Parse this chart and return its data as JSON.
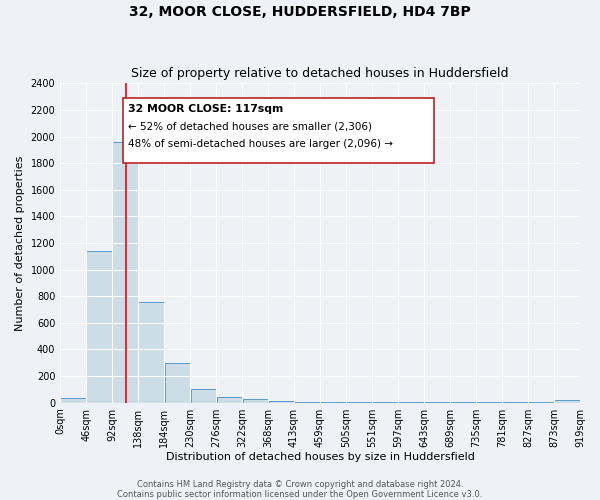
{
  "title": "32, MOOR CLOSE, HUDDERSFIELD, HD4 7BP",
  "subtitle": "Size of property relative to detached houses in Huddersfield",
  "xlabel": "Distribution of detached houses by size in Huddersfield",
  "ylabel": "Number of detached properties",
  "bin_edges": [
    0,
    46,
    92,
    138,
    184,
    230,
    276,
    322,
    368,
    413,
    459,
    505,
    551,
    597,
    643,
    689,
    735,
    781,
    827,
    873,
    919
  ],
  "bin_counts": [
    35,
    1140,
    1960,
    760,
    295,
    100,
    45,
    25,
    15,
    5,
    5,
    5,
    5,
    5,
    5,
    5,
    5,
    5,
    5,
    20
  ],
  "bar_color": "#ccdde8",
  "bar_edge_color": "#5599cc",
  "red_line_x": 117,
  "ylim": [
    0,
    2400
  ],
  "yticks": [
    0,
    200,
    400,
    600,
    800,
    1000,
    1200,
    1400,
    1600,
    1800,
    2000,
    2200,
    2400
  ],
  "xtick_labels": [
    "0sqm",
    "46sqm",
    "92sqm",
    "138sqm",
    "184sqm",
    "230sqm",
    "276sqm",
    "322sqm",
    "368sqm",
    "413sqm",
    "459sqm",
    "505sqm",
    "551sqm",
    "597sqm",
    "643sqm",
    "689sqm",
    "735sqm",
    "781sqm",
    "827sqm",
    "873sqm",
    "919sqm"
  ],
  "annotation_title": "32 MOOR CLOSE: 117sqm",
  "annotation_line1": "← 52% of detached houses are smaller (2,306)",
  "annotation_line2": "48% of semi-detached houses are larger (2,096) →",
  "footer_line1": "Contains HM Land Registry data © Crown copyright and database right 2024.",
  "footer_line2": "Contains public sector information licensed under the Open Government Licence v3.0.",
  "bg_color": "#eef2f6",
  "grid_color": "#ffffff",
  "title_fontsize": 10,
  "subtitle_fontsize": 9,
  "axis_label_fontsize": 8,
  "tick_fontsize": 7,
  "footer_fontsize": 6
}
